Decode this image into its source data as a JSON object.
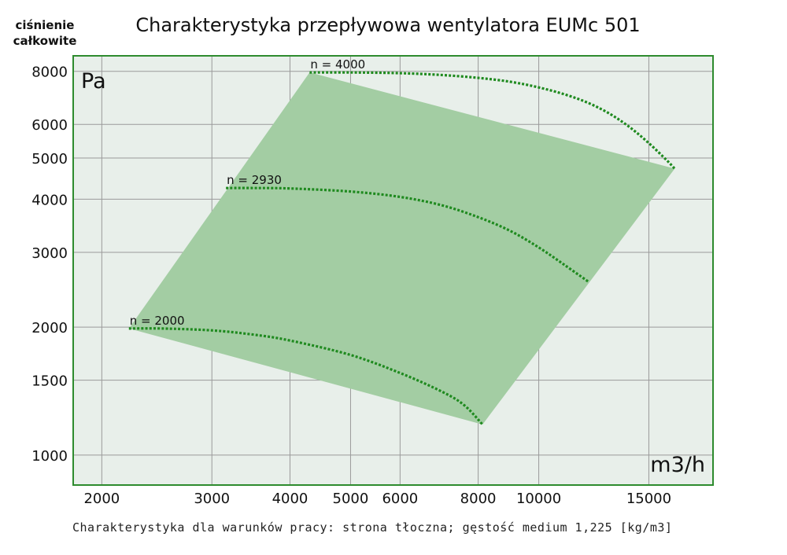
{
  "chart_data": {
    "type": "line",
    "title": "Charakterystyka przepływowa wentylatora EUMc 501",
    "ylabel": [
      "ciśnienie",
      "całkowite"
    ],
    "y_unit": "Pa",
    "x_unit": "m3/h",
    "x_scale": "log",
    "y_scale": "log",
    "xlim": [
      1800,
      19000
    ],
    "ylim": [
      850,
      8700
    ],
    "x_ticks": [
      2000,
      3000,
      4000,
      5000,
      6000,
      8000,
      10000,
      15000
    ],
    "y_ticks": [
      1000,
      1500,
      2000,
      3000,
      4000,
      5000,
      6000,
      8000
    ],
    "grid": true,
    "footnote": "Charakterystyka dla warunków pracy: strona tłoczna; gęstość medium 1,225 [kg/m3]",
    "colors": {
      "area": "#a3cda3",
      "curve": "#1f8a1f",
      "frame": "#2e8b2e",
      "grid": "#9a9a9a",
      "plot_bg": "#e8efea"
    },
    "operating_area": {
      "x": [
        2210,
        4300,
        16500,
        8130
      ],
      "y": [
        1985,
        7950,
        4720,
        1180
      ]
    },
    "series": [
      {
        "name": "n = 4000",
        "x": [
          4300,
          5000,
          6000,
          7000,
          8000,
          9000,
          10000,
          11000,
          12000,
          13000,
          14000,
          15000,
          16000,
          16500
        ],
        "y": [
          7950,
          7950,
          7920,
          7840,
          7720,
          7560,
          7330,
          7060,
          6740,
          6350,
          5900,
          5420,
          4950,
          4720
        ]
      },
      {
        "name": "n = 2930",
        "x": [
          3160,
          3500,
          4000,
          5000,
          6000,
          7000,
          8000,
          9000,
          10000,
          11000,
          12000
        ],
        "y": [
          4250,
          4250,
          4240,
          4170,
          4050,
          3870,
          3630,
          3370,
          3080,
          2800,
          2560
        ]
      },
      {
        "name": "n = 2000",
        "x": [
          2210,
          2500,
          3000,
          3500,
          4000,
          5000,
          6000,
          7000,
          7600,
          8130
        ],
        "y": [
          1985,
          1985,
          1965,
          1920,
          1860,
          1720,
          1560,
          1410,
          1310,
          1180
        ]
      }
    ]
  }
}
